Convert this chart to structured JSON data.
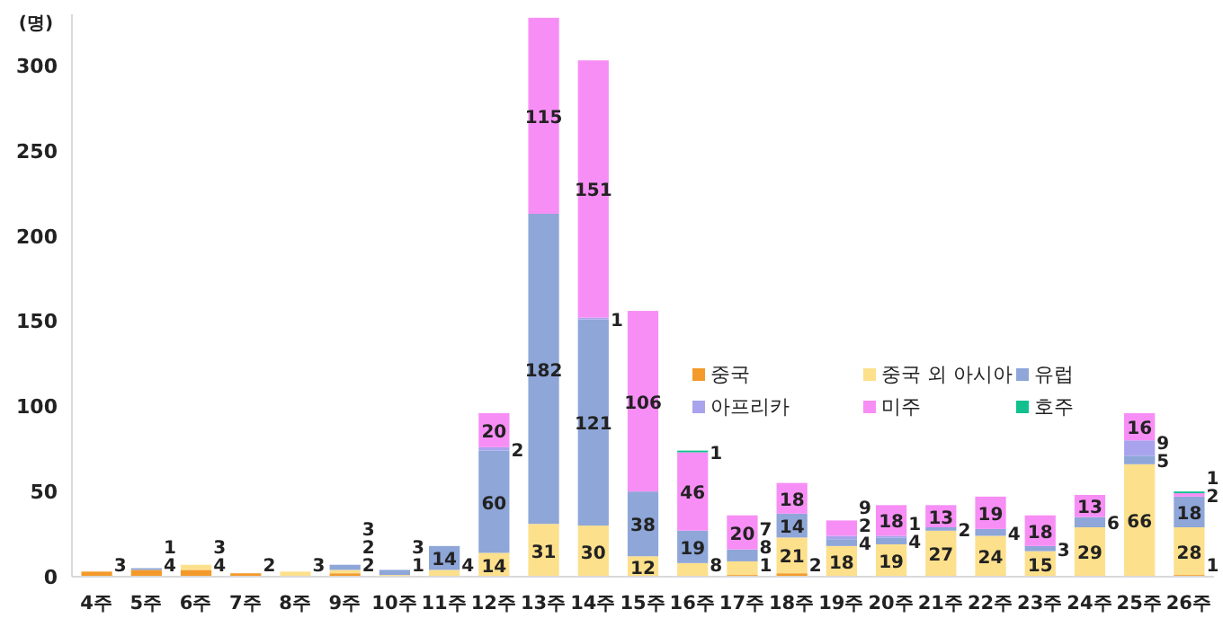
{
  "chart_data": {
    "type": "bar",
    "stacked": true,
    "ylabel": "(명)",
    "ylim": [
      0,
      330
    ],
    "yticks": [
      0,
      50,
      100,
      150,
      200,
      250,
      300
    ],
    "grid": false,
    "legend": "center right",
    "data_labels": true,
    "categories": [
      "4주",
      "5주",
      "6주",
      "7주",
      "8주",
      "9주",
      "10주",
      "11주",
      "12주",
      "13주",
      "14주",
      "15주",
      "16주",
      "17주",
      "18주",
      "19주",
      "20주",
      "21주",
      "22주",
      "23주",
      "24주",
      "25주",
      "26주"
    ],
    "series": [
      {
        "name": "중국",
        "color": "#f39a2b",
        "values": [
          3,
          4,
          4,
          2,
          null,
          2,
          null,
          null,
          null,
          null,
          null,
          null,
          null,
          1,
          2,
          null,
          null,
          null,
          null,
          null,
          null,
          null,
          1
        ]
      },
      {
        "name": "중국 외 아시아",
        "color": "#fde08c",
        "values": [
          null,
          null,
          3,
          null,
          3,
          2,
          1,
          4,
          14,
          31,
          30,
          12,
          8,
          8,
          21,
          18,
          19,
          27,
          24,
          15,
          29,
          66,
          28
        ]
      },
      {
        "name": "유럽",
        "color": "#8ea6d8",
        "values": [
          null,
          1,
          null,
          null,
          null,
          3,
          3,
          14,
          60,
          182,
          121,
          38,
          19,
          7,
          14,
          4,
          4,
          2,
          4,
          3,
          6,
          5,
          18
        ]
      },
      {
        "name": "아프리카",
        "color": "#a9a3ee",
        "values": [
          null,
          null,
          null,
          null,
          null,
          null,
          null,
          null,
          2,
          null,
          1,
          null,
          null,
          null,
          null,
          2,
          1,
          null,
          null,
          null,
          null,
          9,
          null
        ]
      },
      {
        "name": "미주",
        "color": "#f78ef5",
        "values": [
          null,
          null,
          null,
          null,
          null,
          null,
          null,
          null,
          20,
          115,
          151,
          106,
          46,
          20,
          18,
          9,
          18,
          13,
          19,
          18,
          13,
          16,
          2
        ]
      },
      {
        "name": "호주",
        "color": "#12c08f",
        "values": [
          null,
          null,
          null,
          null,
          null,
          null,
          null,
          null,
          null,
          null,
          null,
          null,
          1,
          null,
          null,
          null,
          null,
          null,
          null,
          null,
          null,
          null,
          1
        ]
      }
    ]
  }
}
